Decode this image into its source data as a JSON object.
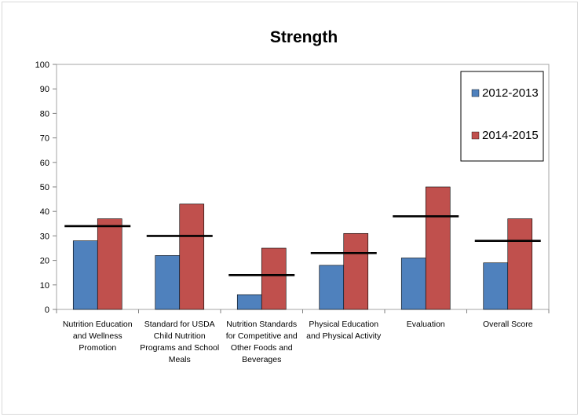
{
  "chart_data": {
    "type": "bar",
    "title": "Strength",
    "xlabel": "",
    "ylabel": "",
    "ylim": [
      0,
      100
    ],
    "yticks": [
      0,
      10,
      20,
      30,
      40,
      50,
      60,
      70,
      80,
      90,
      100
    ],
    "grid": false,
    "legend_position": "top-right",
    "categories": [
      [
        "Nutrition Education",
        "and Wellness",
        "Promotion"
      ],
      [
        "Standard for USDA",
        "Child Nutrition",
        "Programs and School",
        "Meals"
      ],
      [
        "Nutrition Standards",
        "for Competitive and",
        "Other Foods and",
        "Beverages"
      ],
      [
        "Physical Education",
        "and Physical Activity"
      ],
      [
        "Evaluation"
      ],
      [
        "Overall Score"
      ]
    ],
    "series": [
      {
        "name": "2012-2013",
        "color": "#4f81bd",
        "values": [
          28,
          22,
          6,
          18,
          21,
          19
        ]
      },
      {
        "name": "2014-2015",
        "color": "#c0504d",
        "values": [
          37,
          43,
          25,
          31,
          50,
          37
        ]
      }
    ],
    "reference_lines": {
      "color": "#000000",
      "values": [
        34,
        30,
        14,
        23,
        38,
        28
      ]
    }
  }
}
